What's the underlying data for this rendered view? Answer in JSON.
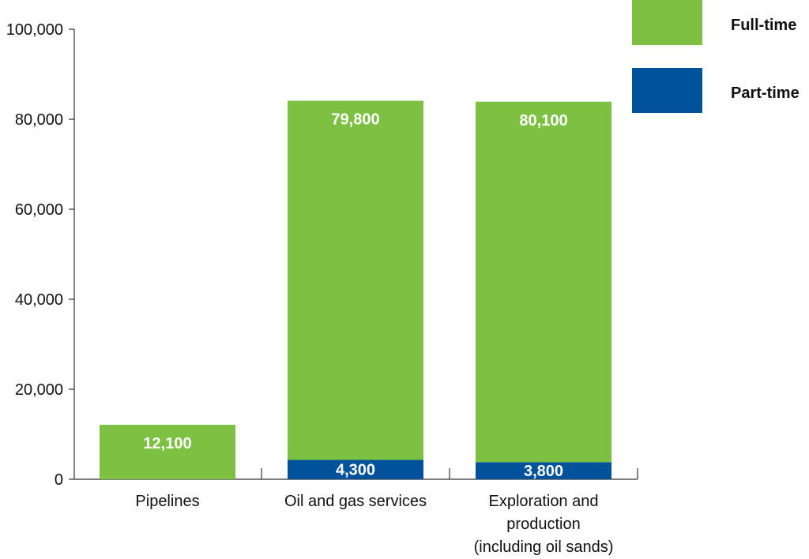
{
  "chart_data": {
    "type": "bar",
    "stacked": true,
    "categories": [
      [
        "Pipelines"
      ],
      [
        "Oil and gas services"
      ],
      [
        "Exploration and",
        "production",
        "(including oil sands)"
      ]
    ],
    "series": [
      {
        "name": "Part-time",
        "color": "#00539b",
        "values": [
          0,
          4300,
          3800
        ],
        "labels": [
          "",
          "4,300",
          "3,800"
        ]
      },
      {
        "name": "Full-time",
        "color": "#7dc142",
        "values": [
          12100,
          79800,
          80100
        ],
        "labels": [
          "12,100",
          "79,800",
          "80,100"
        ]
      }
    ],
    "legend_order": [
      "Full-time",
      "Part-time"
    ],
    "yticks": [
      0,
      20000,
      40000,
      60000,
      80000,
      100000
    ],
    "ytick_labels": [
      "0",
      "20,000",
      "40,000",
      "60,000",
      "80,000",
      "100,000"
    ],
    "ylim": [
      0,
      100000
    ],
    "title": "",
    "xlabel": "",
    "ylabel": "",
    "legend_position": "top-right"
  }
}
